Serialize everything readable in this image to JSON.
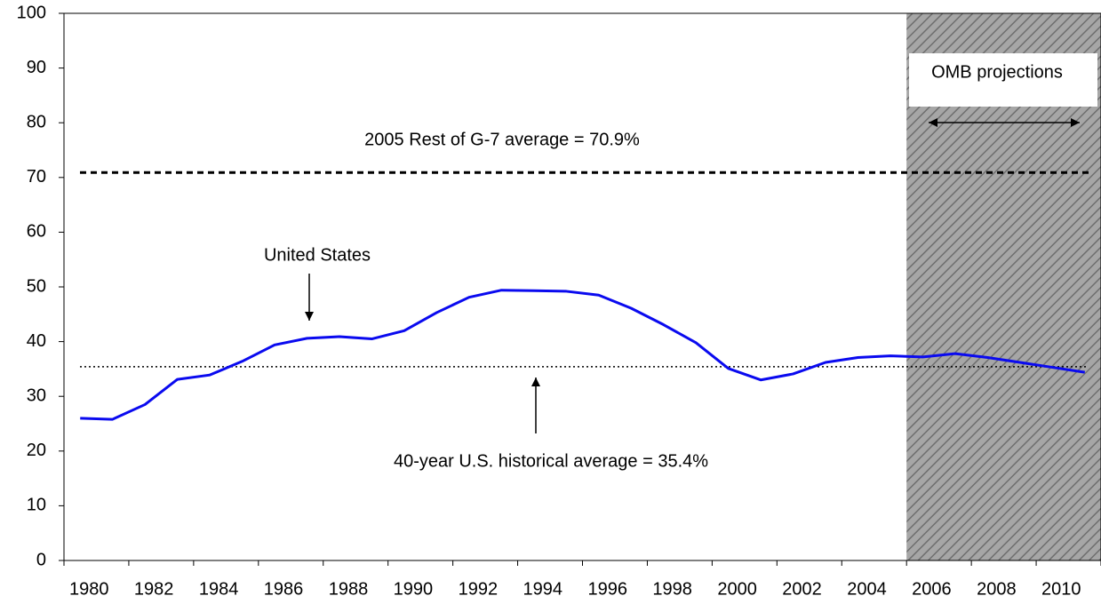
{
  "chart_data": {
    "type": "line",
    "categories": [
      "1980",
      null,
      "1982",
      null,
      "1984",
      null,
      "1986",
      null,
      "1988",
      null,
      "1990",
      null,
      "1992",
      null,
      "1994",
      null,
      "1996",
      null,
      "1998",
      null,
      "2000",
      null,
      "2002",
      null,
      "2004",
      null,
      "2006",
      null,
      "2008",
      null,
      "2010",
      null
    ],
    "series": [
      {
        "name": "United States",
        "color": "#0a0aef",
        "values": [
          26.0,
          25.8,
          28.5,
          33.1,
          33.9,
          36.4,
          39.4,
          40.6,
          40.9,
          40.5,
          42.0,
          45.3,
          48.1,
          49.4,
          49.3,
          49.2,
          48.5,
          46.1,
          43.1,
          39.8,
          35.1,
          33.0,
          34.1,
          36.2,
          37.1,
          37.4,
          37.2,
          37.8,
          37.1,
          36.2,
          35.3,
          34.4
        ]
      }
    ],
    "ylim": [
      0,
      100
    ],
    "yticks": [
      0,
      10,
      20,
      30,
      40,
      50,
      60,
      70,
      80,
      90,
      100
    ],
    "reference_lines": [
      {
        "value": 70.9,
        "style": "dashed"
      },
      {
        "value": 35.4,
        "style": "dotted"
      }
    ],
    "shade_from": "2006",
    "annotations": {
      "us": "United States",
      "g7": "2005 Rest of G-7 average = 70.9%",
      "hist": "40-year U.S. historical average = 35.4%",
      "omb": "OMB projections"
    }
  }
}
